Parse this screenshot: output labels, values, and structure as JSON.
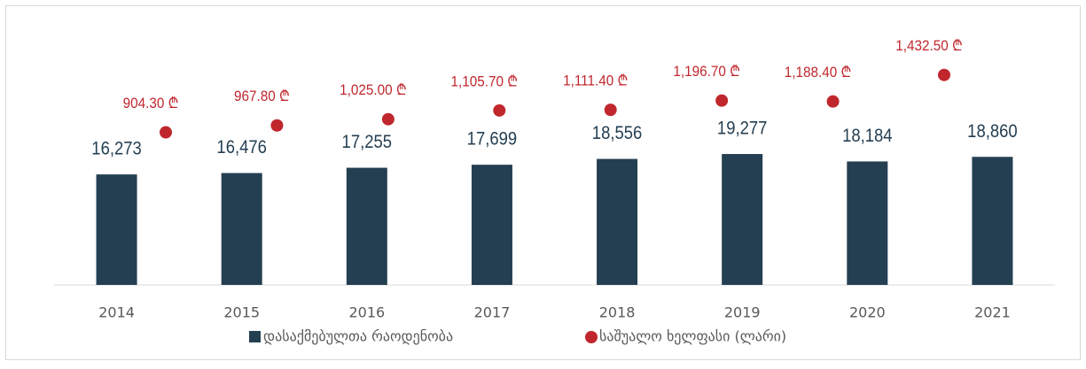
{
  "chart_data": {
    "type": "bar_dot",
    "categories": [
      "2014",
      "2015",
      "2016",
      "2017",
      "2018",
      "2019",
      "2020",
      "2021"
    ],
    "series": [
      {
        "name": "დასაქმებულთა რაოდენობა",
        "color": "#243f52",
        "type": "bar",
        "values": [
          16273,
          16476,
          17255,
          17699,
          18556,
          19277,
          18184,
          18860
        ],
        "value_labels": [
          "16,273",
          "16,476",
          "17,255",
          "17,699",
          "18,556",
          "19,277",
          "18,184",
          "18,860"
        ]
      },
      {
        "name": "საშუალო ხელფასი (ლარი)",
        "color": "#c0272d",
        "type": "dot",
        "axis": "y2",
        "values": [
          904.3,
          967.8,
          1025.0,
          1105.7,
          1111.4,
          1196.7,
          1188.4,
          1432.5
        ],
        "value_labels": [
          "904.30 ₾",
          "967.80 ₾",
          "1,025.00 ₾",
          "1,105.70 ₾",
          "1,111.40 ₾",
          "1,196.70 ₾",
          "1,188.40 ₾",
          "1,432.50 ₾"
        ]
      }
    ],
    "ylim": [
      0,
      40000
    ],
    "y2lim": [
      -500,
      2000
    ],
    "legend": "bottom"
  }
}
